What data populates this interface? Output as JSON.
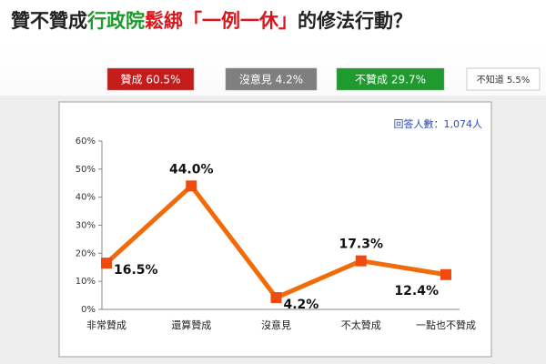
{
  "chart_data": {
    "type": "line",
    "title_segments": [
      {
        "text": "贊不贊成",
        "color": "#222222"
      },
      {
        "text": "行政院",
        "color": "#1a9a2a"
      },
      {
        "text": "鬆綁「一例一休」",
        "color": "#d8171c"
      },
      {
        "text": "的修法行動？",
        "color": "#222222"
      }
    ],
    "summary": [
      {
        "label": "贊成 60.5%",
        "color": "#c41b1b",
        "text_color": "#ffffff"
      },
      {
        "label": "沒意見 4.2%",
        "color": "#7f7f7f",
        "text_color": "#ffffff"
      },
      {
        "label": "不贊成 29.7%",
        "color": "#1e9a2e",
        "text_color": "#ffffff"
      },
      {
        "label": "不知道 5.5%",
        "color": "#ffffff",
        "text_color": "#333333"
      }
    ],
    "annotation": "回答人數：1,074人",
    "categories": [
      "非常贊成",
      "還算贊成",
      "沒意見",
      "不太贊成",
      "一點也不贊成"
    ],
    "values": [
      16.5,
      44.0,
      4.2,
      17.3,
      12.4
    ],
    "value_labels": [
      "16.5%",
      "44.0%",
      "4.2%",
      "17.3%",
      "12.4%"
    ],
    "color": "#f26b0a",
    "ylim": [
      0,
      60
    ],
    "yticks": [
      {
        "value": 0,
        "label": "0%"
      },
      {
        "value": 10,
        "label": "10%"
      },
      {
        "value": 20,
        "label": "20%"
      },
      {
        "value": 30,
        "label": "30%"
      },
      {
        "value": 40,
        "label": "40%"
      },
      {
        "value": 50,
        "label": "50%"
      },
      {
        "value": 60,
        "label": "60%"
      }
    ]
  }
}
